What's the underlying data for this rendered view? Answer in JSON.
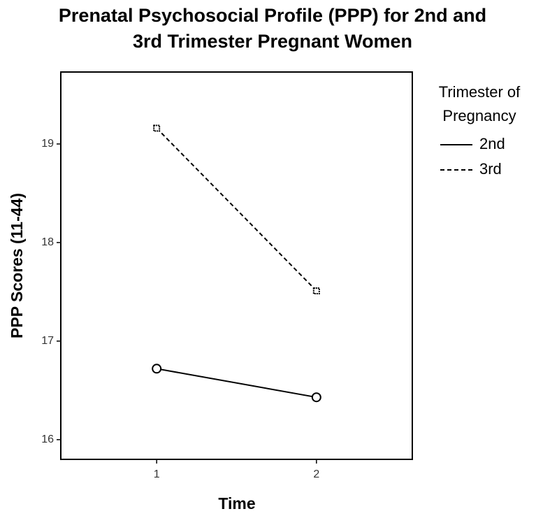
{
  "chart_data": {
    "type": "line",
    "title": [
      "Prenatal Psychosocial Profile (PPP) for 2nd and",
      "3rd Trimester Pregnant Women"
    ],
    "x_label": "Time",
    "y_label": "PPP Scores (11-44)",
    "legend_title": [
      "Trimester of",
      "Pregnancy"
    ],
    "legend": "right",
    "x": [
      1,
      2
    ],
    "series": [
      {
        "name": "2nd",
        "color": "#000000",
        "dash": "solid",
        "marker": "circle",
        "values": [
          16.72,
          16.43
        ]
      },
      {
        "name": "3rd",
        "color": "#000000",
        "dash": "dashed",
        "marker": "square",
        "values": [
          19.16,
          17.51
        ]
      }
    ],
    "xlim": [
      0.4,
      2.6
    ],
    "xticks": [
      1,
      2
    ],
    "ylim": [
      15.8,
      19.73
    ],
    "yticks": [
      16,
      17,
      18,
      19
    ],
    "grid": false
  }
}
